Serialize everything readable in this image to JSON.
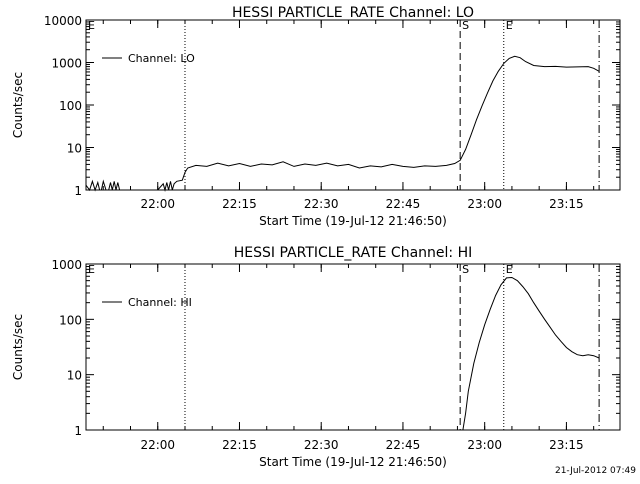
{
  "footer_timestamp": "21-Jul-2012 07:49",
  "chart_data": [
    {
      "type": "line",
      "title": "HESSI PARTICLE_RATE Channel: LO",
      "xlabel": "Start Time (19-Jul-12 21:46:50)",
      "ylabel": "Counts/sec",
      "yscale": "log",
      "ylim": [
        1,
        10000
      ],
      "yticks": [
        "1",
        "10",
        "100",
        "1000",
        "10000"
      ],
      "xlim": [
        "21:46:50",
        "23:24:50"
      ],
      "xticks": [
        "22:00",
        "22:15",
        "22:30",
        "22:45",
        "23:00",
        "23:15"
      ],
      "legend": "Channel: LO",
      "legend_location": "upper-left",
      "markers": [
        {
          "time": "21:46:50",
          "style": "dotted",
          "label": "E"
        },
        {
          "time": "22:05:00",
          "style": "dotted",
          "label": ""
        },
        {
          "time": "22:55:30",
          "style": "dashed",
          "label": "S"
        },
        {
          "time": "23:03:30",
          "style": "dotted",
          "label": "E"
        },
        {
          "time": "23:21:00",
          "style": "dash-dot",
          "label": ""
        }
      ],
      "series": [
        {
          "name": "Channel: LO",
          "x": [
            "21:46:50",
            "21:47:30",
            "21:48:00",
            "21:48:30",
            "21:49:00",
            "21:49:20",
            "21:49:40",
            "21:50:00",
            "21:50:30",
            "21:51:00",
            "21:51:20",
            "21:51:40",
            "21:52:00",
            "21:52:20",
            "21:52:40",
            "21:53:00",
            "21:53:30",
            "21:54:30",
            "21:56:00",
            "21:58:00",
            "22:00:00",
            "22:01:00",
            "22:01:20",
            "22:01:40",
            "22:02:00",
            "22:02:20",
            "22:02:40",
            "22:03:00",
            "22:03:30",
            "22:04:30",
            "22:05:00",
            "22:05:30",
            "22:07:00",
            "22:09:00",
            "22:11:00",
            "22:13:00",
            "22:15:00",
            "22:17:00",
            "22:19:00",
            "22:21:00",
            "22:23:00",
            "22:25:00",
            "22:27:00",
            "22:29:00",
            "22:31:00",
            "22:33:00",
            "22:35:00",
            "22:37:00",
            "22:39:00",
            "22:41:00",
            "22:43:00",
            "22:45:00",
            "22:47:00",
            "22:49:00",
            "22:51:00",
            "22:53:00",
            "22:54:30",
            "22:55:30",
            "22:56:30",
            "22:57:30",
            "22:58:30",
            "22:59:30",
            "23:00:30",
            "23:01:30",
            "23:02:30",
            "23:03:30",
            "23:04:30",
            "23:05:30",
            "23:06:30",
            "23:07:30",
            "23:09:00",
            "23:11:00",
            "23:13:00",
            "23:15:00",
            "23:17:00",
            "23:19:00",
            "23:20:00",
            "23:21:00"
          ],
          "y": [
            1.3,
            1.0,
            1.6,
            1.0,
            1.5,
            1.0,
            1.0,
            1.6,
            1.0,
            1.0,
            1.5,
            1.0,
            1.6,
            1.0,
            1.5,
            1.0,
            1.0,
            1.0,
            1.0,
            1.0,
            1.0,
            1.4,
            1.0,
            1.5,
            1.0,
            1.6,
            1.0,
            1.4,
            1.6,
            1.7,
            2.6,
            3.3,
            3.8,
            3.6,
            4.3,
            3.7,
            4.2,
            3.6,
            4.1,
            3.9,
            4.6,
            3.6,
            4.1,
            3.8,
            4.3,
            3.7,
            4.0,
            3.3,
            3.7,
            3.5,
            4.0,
            3.6,
            3.4,
            3.7,
            3.6,
            3.8,
            4.2,
            5.0,
            9,
            20,
            45,
            95,
            190,
            370,
            620,
            950,
            1250,
            1400,
            1300,
            1050,
            850,
            800,
            810,
            780,
            790,
            800,
            730,
            620
          ]
        }
      ]
    },
    {
      "type": "line",
      "title": "HESSI PARTICLE_RATE Channel: HI",
      "xlabel": "Start Time (19-Jul-12 21:46:50)",
      "ylabel": "Counts/sec",
      "yscale": "log",
      "ylim": [
        1,
        1000
      ],
      "yticks": [
        "1",
        "10",
        "100",
        "1000"
      ],
      "xlim": [
        "21:46:50",
        "23:24:50"
      ],
      "xticks": [
        "22:00",
        "22:15",
        "22:30",
        "22:45",
        "23:00",
        "23:15"
      ],
      "legend": "Channel: HI",
      "legend_location": "upper-left",
      "markers": [
        {
          "time": "21:46:50",
          "style": "dotted",
          "label": "E"
        },
        {
          "time": "22:05:00",
          "style": "dotted",
          "label": ""
        },
        {
          "time": "22:55:30",
          "style": "dashed",
          "label": "S"
        },
        {
          "time": "23:03:30",
          "style": "dotted",
          "label": "E"
        },
        {
          "time": "23:21:00",
          "style": "dash-dot",
          "label": ""
        }
      ],
      "series": [
        {
          "name": "Channel: HI",
          "x": [
            "22:56:00",
            "22:56:30",
            "22:57:00",
            "22:58:00",
            "22:59:00",
            "23:00:00",
            "23:01:00",
            "23:02:00",
            "23:03:00",
            "23:04:00",
            "23:05:00",
            "23:06:00",
            "23:07:00",
            "23:08:00",
            "23:09:00",
            "23:10:00",
            "23:11:00",
            "23:12:00",
            "23:13:00",
            "23:14:00",
            "23:15:00",
            "23:16:00",
            "23:17:00",
            "23:18:00",
            "23:19:00",
            "23:20:00",
            "23:21:00"
          ],
          "y": [
            1,
            2,
            5,
            16,
            38,
            80,
            150,
            270,
            420,
            560,
            570,
            500,
            390,
            290,
            200,
            140,
            100,
            72,
            52,
            40,
            31,
            26,
            23,
            22,
            23,
            22,
            20
          ]
        }
      ]
    }
  ]
}
